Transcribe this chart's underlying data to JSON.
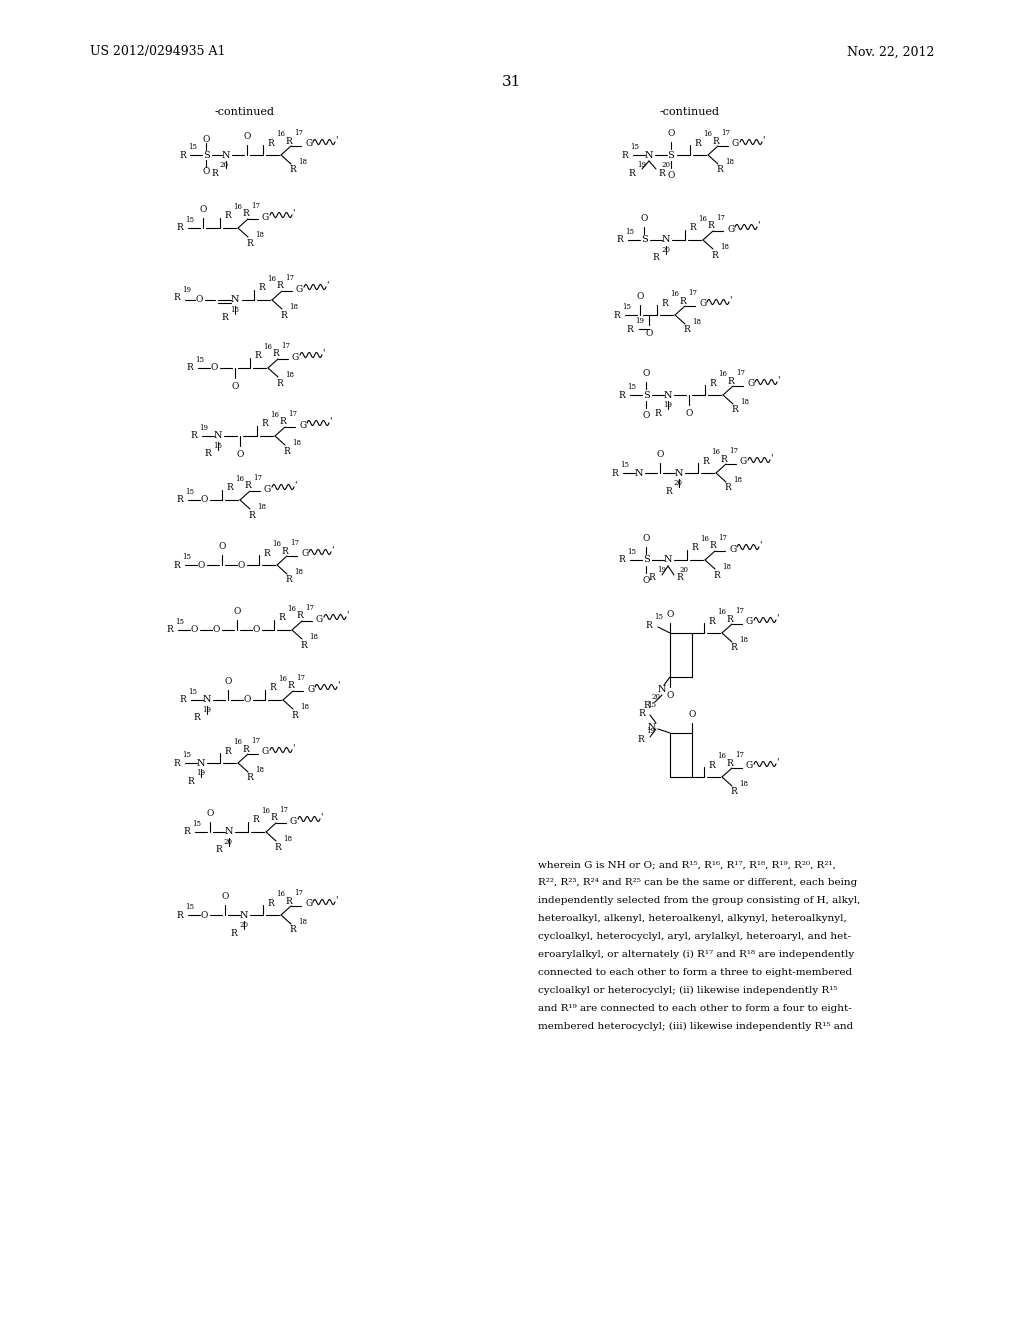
{
  "bg_color": "#ffffff",
  "header_left": "US 2012/0294935 A1",
  "header_right": "Nov. 22, 2012",
  "page_number": "31",
  "continued_left": "-continued",
  "continued_right": "-continued",
  "footer_text": "wherein G is NH or O; and R15, R16, R17, R18, R19, R20, R21,\nR22, R23, R24 and R25 can be the same or different, each being\nindependently selected from the group consisting of H, alkyl,\nheteroalkyl, alkenyl, heteroalkenyl, alkynyl, heteroalkynyl,\ncycloalkyl, heterocyclyl, aryl, arylalkyl, heteroaryl, and het-\neroarylalkyl, or alternately (i) R17 and R18 are independently\nconnected to each other to form a three to eight-membered\ncycloalkyl or heterocyclyl; (ii) likewise independently R15\nand R19 are connected to each other to form a four to eight-\nmembered heterocyclyl; (iii) likewise independently R15 and"
}
